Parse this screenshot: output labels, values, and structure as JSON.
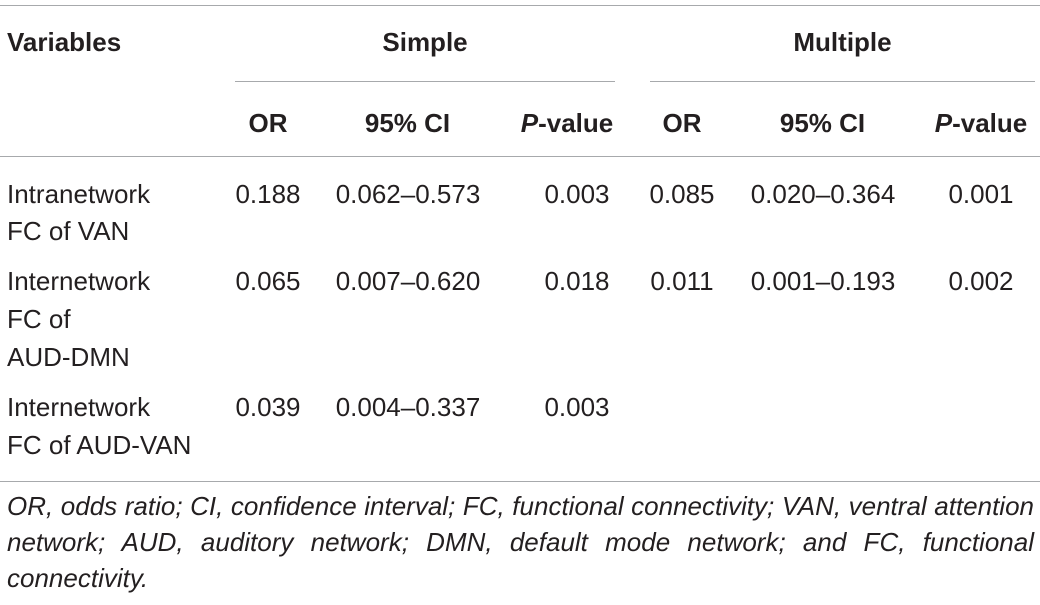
{
  "table": {
    "header": {
      "variables": "Variables",
      "simple": "Simple",
      "multiple": "Multiple",
      "sub": {
        "or": "OR",
        "ci": "95% CI",
        "p_italic": "P",
        "p_rest": "-value"
      }
    },
    "rows": [
      {
        "var_lines": [
          "Intranetwork",
          "FC of VAN"
        ],
        "s_or": "0.188",
        "s_ci": "0.062–0.573",
        "s_p": "0.003",
        "m_or": "0.085",
        "m_ci": "0.020–0.364",
        "m_p": "0.001"
      },
      {
        "var_lines": [
          "Internetwork",
          "FC of",
          "AUD-DMN"
        ],
        "s_or": "0.065",
        "s_ci": "0.007–0.620",
        "s_p": "0.018",
        "m_or": "0.011",
        "m_ci": "0.001–0.193",
        "m_p": "0.002"
      },
      {
        "var_lines": [
          "Internetwork",
          "FC of AUD-VAN"
        ],
        "s_or": "0.039",
        "s_ci": "0.004–0.337",
        "s_p": "0.003",
        "m_or": "",
        "m_ci": "",
        "m_p": ""
      }
    ],
    "footnote": "OR, odds ratio; CI, confidence interval; FC, functional connectivity; VAN, ventral attention network; AUD, auditory network; DMN, default mode network; and FC, functional connectivity."
  }
}
